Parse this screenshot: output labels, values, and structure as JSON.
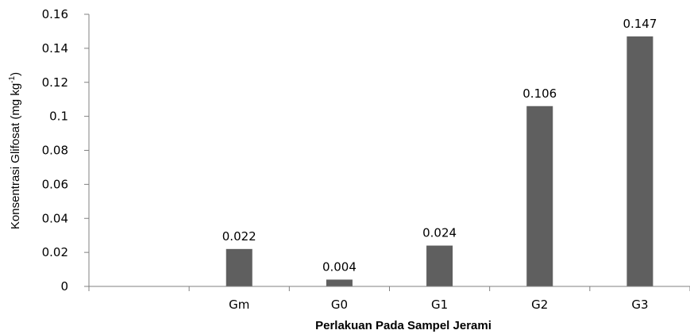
{
  "chart_data": {
    "type": "bar",
    "title": "",
    "categories": [
      "",
      "Gm",
      "G0",
      "G1",
      "G2",
      "G3"
    ],
    "values": [
      null,
      0.022,
      0.004,
      0.024,
      0.106,
      0.147
    ],
    "data_labels": [
      "",
      "0.022",
      "0.004",
      "0.024",
      "0.106",
      "0.147"
    ],
    "xlabel": "Perlakuan Pada Sampel Jerami",
    "ylabel": {
      "main": "Konsentrasi Glifosat (mg kg",
      "superscript": "-1",
      "close": ")"
    },
    "ylim": [
      0,
      0.16
    ],
    "yticks": [
      "0",
      "0.02",
      "0.04",
      "0.06",
      "0.08",
      "0.1",
      "0.12",
      "0.14",
      "0.16"
    ],
    "grid": false,
    "legend": "none",
    "colors": {
      "bar": "#5f5f5f",
      "axis": "#808080"
    }
  }
}
